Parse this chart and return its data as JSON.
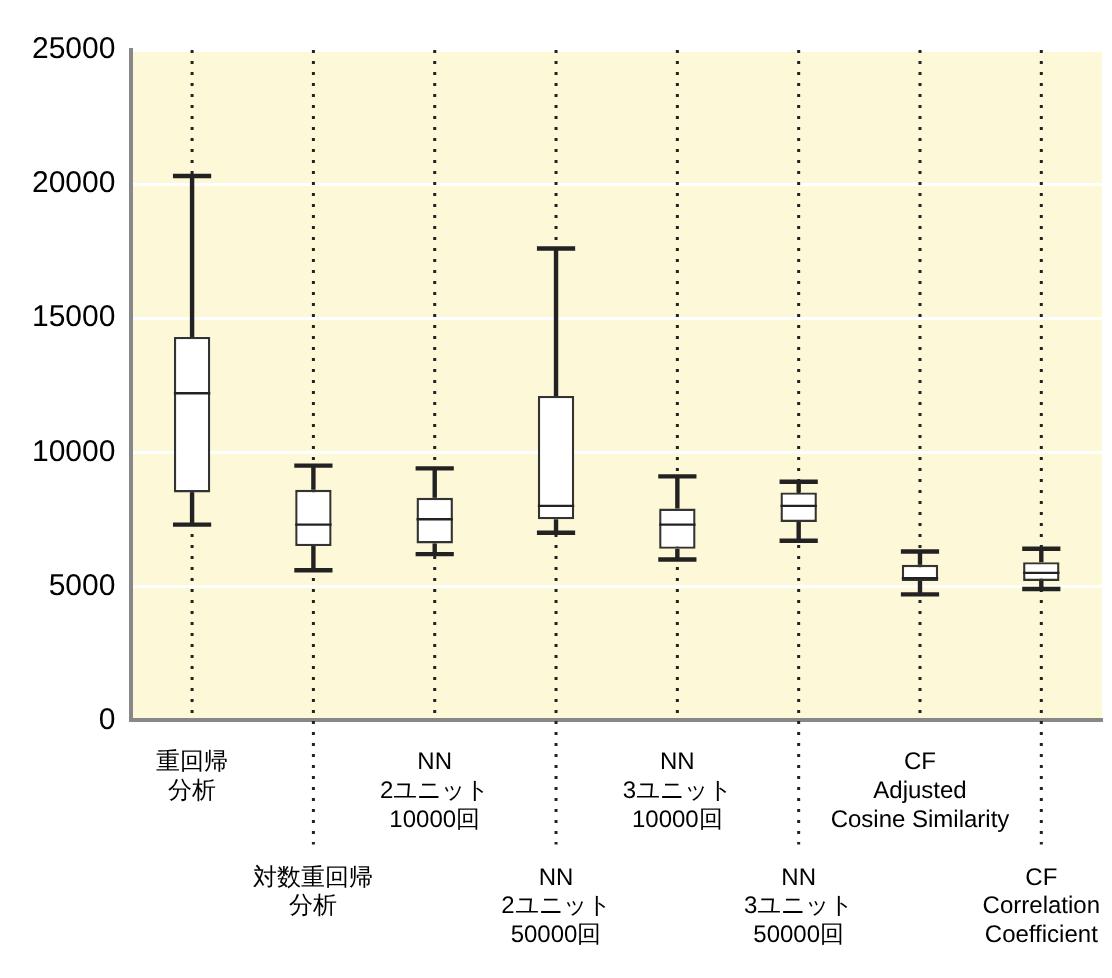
{
  "chart_data": {
    "type": "box",
    "categories": [
      "重回帰分析",
      "対数重回帰分析",
      "NN\n2ユニット\n10000回",
      "NN\n2ユニット\n50000回",
      "NN\n3ユニット\n10000回",
      "NN\n3ユニット\n50000回",
      "CF\nAdjusted\nCosine Similarity",
      "CF\nCorrelation\nCoefficient"
    ],
    "boxes": [
      {
        "low": 7300,
        "q1": 8500,
        "median": 12200,
        "q3": 14300,
        "high": 20300
      },
      {
        "low": 5600,
        "q1": 6500,
        "median": 7300,
        "q3": 8600,
        "high": 9500
      },
      {
        "low": 6200,
        "q1": 6600,
        "median": 7500,
        "q3": 8300,
        "high": 9400
      },
      {
        "low": 7000,
        "q1": 7500,
        "median": 8000,
        "q3": 12100,
        "high": 17600
      },
      {
        "low": 6000,
        "q1": 6400,
        "median": 7300,
        "q3": 7900,
        "high": 9100
      },
      {
        "low": 6700,
        "q1": 7400,
        "median": 8000,
        "q3": 8500,
        "high": 8900
      },
      {
        "low": 4700,
        "q1": 5200,
        "median": 5300,
        "q3": 5800,
        "high": 6300
      },
      {
        "low": 4900,
        "q1": 5200,
        "median": 5500,
        "q3": 5900,
        "high": 6400
      }
    ],
    "ylim": [
      0,
      25000
    ],
    "yticks": [
      0,
      5000,
      10000,
      15000,
      20000,
      25000
    ],
    "grid": true
  }
}
